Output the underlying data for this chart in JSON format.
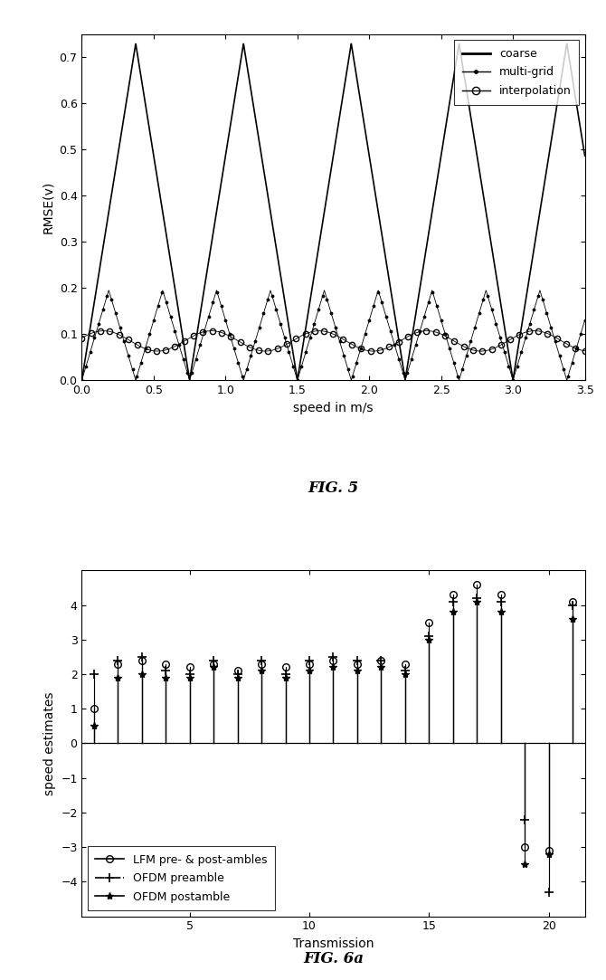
{
  "fig5": {
    "caption": "FIG. 5",
    "xlabel": "speed in m/s",
    "ylabel": "RMSE(v)",
    "xlim": [
      0,
      3.5
    ],
    "ylim": [
      0,
      0.75
    ],
    "yticks": [
      0,
      0.1,
      0.2,
      0.3,
      0.4,
      0.5,
      0.6,
      0.7
    ],
    "xticks": [
      0,
      0.5,
      1.0,
      1.5,
      2.0,
      2.5,
      3.0,
      3.5
    ]
  },
  "fig6a": {
    "caption": "FIG. 6a",
    "xlabel": "Transmission",
    "ylabel": "speed estimates",
    "xlim": [
      0.5,
      21.5
    ],
    "ylim": [
      -5,
      5
    ],
    "yticks": [
      -4,
      -3,
      -2,
      -1,
      0,
      1,
      2,
      3,
      4
    ],
    "xticks": [
      5,
      10,
      15,
      20
    ],
    "lfm": [
      1.0,
      2.3,
      2.4,
      2.3,
      2.2,
      2.3,
      2.1,
      2.3,
      2.2,
      2.3,
      2.4,
      2.3,
      2.4,
      2.3,
      3.5,
      4.3,
      4.6,
      4.3,
      -3.0,
      -3.1,
      4.1
    ],
    "ofdm_pre": [
      2.0,
      2.4,
      2.5,
      2.1,
      2.0,
      2.4,
      2.0,
      2.4,
      2.0,
      2.4,
      2.5,
      2.4,
      2.4,
      2.1,
      3.1,
      4.1,
      4.2,
      4.1,
      -2.2,
      -4.3,
      4.0
    ],
    "ofdm_post": [
      0.5,
      1.9,
      2.0,
      1.9,
      1.9,
      2.2,
      1.9,
      2.1,
      1.9,
      2.1,
      2.2,
      2.1,
      2.2,
      2.0,
      3.0,
      3.8,
      4.1,
      3.8,
      -3.5,
      -3.2,
      3.6
    ]
  }
}
